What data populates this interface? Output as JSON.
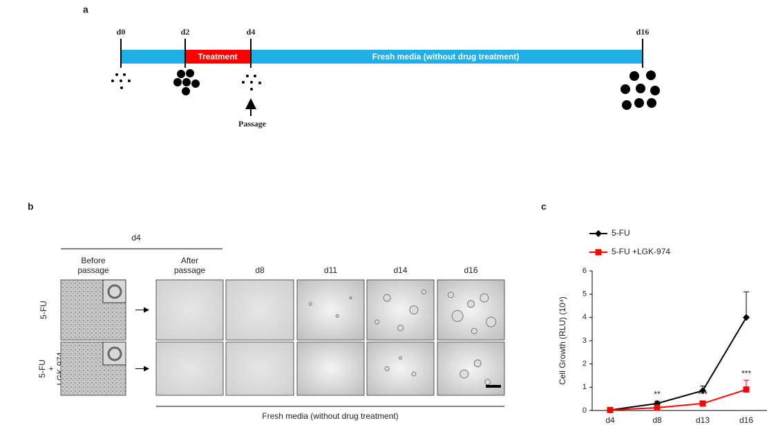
{
  "panel_a": {
    "label": "a",
    "days": [
      "d0",
      "d2",
      "d4",
      "d16"
    ],
    "treatment": "Treatment",
    "fresh_media": "Fresh media (without drug treatment)",
    "passage": "Passage"
  },
  "panel_b": {
    "label": "b",
    "group_header": "d4",
    "columns": [
      [
        "Before",
        "passage"
      ],
      [
        "After",
        "passage"
      ],
      [
        "d8"
      ],
      [
        "d11"
      ],
      [
        "d14"
      ],
      [
        "d16"
      ]
    ],
    "rows": [
      [
        "5-FU"
      ],
      [
        "5-FU",
        "+",
        "LGK-974"
      ]
    ],
    "footer": "Fresh media (without drug treatment)"
  },
  "chart_data": {
    "type": "line",
    "panel_label": "c",
    "ylabel": "Cell Growth (RLU) (10⁴)",
    "categories": [
      "d4",
      "d8",
      "d13",
      "d16"
    ],
    "series": [
      {
        "name": "5-FU",
        "color": "#000000",
        "marker": "diamond",
        "values": [
          0.02,
          0.3,
          0.85,
          4.0
        ],
        "errors": [
          0.05,
          0.1,
          0.2,
          1.1
        ]
      },
      {
        "name": "5-FU +LGK-974",
        "color": "#ff0000",
        "marker": "square",
        "values": [
          0.02,
          0.12,
          0.3,
          0.9
        ],
        "errors": [
          0.03,
          0.05,
          0.1,
          0.4
        ]
      }
    ],
    "annotations": [
      {
        "text": "**",
        "series": 0,
        "index": 1
      },
      {
        "text": "***",
        "series": 1,
        "index": 2
      },
      {
        "text": "***",
        "series": 1,
        "index": 3
      }
    ],
    "ylim": [
      0,
      6
    ],
    "yticks": [
      0,
      1,
      2,
      3,
      4,
      5,
      6
    ],
    "grid": false,
    "legend": "top-left"
  }
}
